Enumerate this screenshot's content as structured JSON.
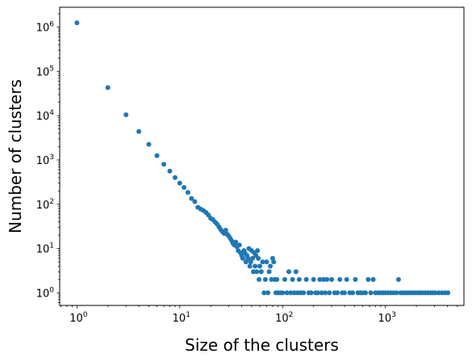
{
  "chart_data": {
    "type": "scatter",
    "xscale": "log",
    "yscale": "log",
    "xlim": [
      0.68,
      5800
    ],
    "ylim": [
      0.52,
      2800000
    ],
    "grid": false,
    "marker_color": "#1f77b4",
    "xlabel": "Size of the clusters",
    "ylabel": "Number of clusters",
    "xticks": [
      {
        "base": "10",
        "exp": "0",
        "value": 1
      },
      {
        "base": "10",
        "exp": "1",
        "value": 10
      },
      {
        "base": "10",
        "exp": "2",
        "value": 100
      },
      {
        "base": "10",
        "exp": "3",
        "value": 1000
      }
    ],
    "yticks": [
      {
        "base": "10",
        "exp": "0",
        "value": 1
      },
      {
        "base": "10",
        "exp": "1",
        "value": 10
      },
      {
        "base": "10",
        "exp": "2",
        "value": 100
      },
      {
        "base": "10",
        "exp": "3",
        "value": 1000
      },
      {
        "base": "10",
        "exp": "4",
        "value": 10000
      },
      {
        "base": "10",
        "exp": "5",
        "value": 100000
      },
      {
        "base": "10",
        "exp": "6",
        "value": 1000000
      }
    ],
    "points": [
      [
        1,
        1250000
      ],
      [
        2,
        43000
      ],
      [
        3,
        10500
      ],
      [
        4,
        4400
      ],
      [
        5,
        2250
      ],
      [
        6,
        1250
      ],
      [
        7,
        800
      ],
      [
        8,
        560
      ],
      [
        9,
        400
      ],
      [
        10,
        300
      ],
      [
        11,
        240
      ],
      [
        12,
        185
      ],
      [
        13,
        135
      ],
      [
        14,
        115
      ],
      [
        15,
        85
      ],
      [
        16,
        78
      ],
      [
        17,
        72
      ],
      [
        18,
        65
      ],
      [
        19,
        57
      ],
      [
        20,
        48
      ],
      [
        21,
        45
      ],
      [
        22,
        40
      ],
      [
        23,
        36
      ],
      [
        24,
        31
      ],
      [
        25,
        27
      ],
      [
        26,
        24
      ],
      [
        27,
        22
      ],
      [
        28,
        26
      ],
      [
        29,
        21
      ],
      [
        30,
        19
      ],
      [
        31,
        17
      ],
      [
        32,
        15
      ],
      [
        33,
        13
      ],
      [
        34,
        12
      ],
      [
        35,
        14
      ],
      [
        36,
        11
      ],
      [
        37,
        9
      ],
      [
        38,
        12
      ],
      [
        39,
        8
      ],
      [
        40,
        7
      ],
      [
        41,
        6
      ],
      [
        42,
        9
      ],
      [
        43,
        8
      ],
      [
        44,
        5
      ],
      [
        45,
        7
      ],
      [
        46,
        6
      ],
      [
        47,
        10
      ],
      [
        48,
        4
      ],
      [
        49,
        5
      ],
      [
        50,
        9
      ],
      [
        51,
        6
      ],
      [
        52,
        3
      ],
      [
        53,
        8
      ],
      [
        54,
        4
      ],
      [
        55,
        7
      ],
      [
        56,
        3
      ],
      [
        57,
        9
      ],
      [
        58,
        6
      ],
      [
        59,
        2
      ],
      [
        60,
        4
      ],
      [
        62,
        3
      ],
      [
        64,
        5
      ],
      [
        66,
        1
      ],
      [
        68,
        2
      ],
      [
        70,
        5
      ],
      [
        72,
        1
      ],
      [
        74,
        3
      ],
      [
        76,
        4
      ],
      [
        78,
        2
      ],
      [
        80,
        6
      ],
      [
        82,
        5
      ],
      [
        84,
        2
      ],
      [
        86,
        1
      ],
      [
        88,
        2
      ],
      [
        90,
        1
      ],
      [
        95,
        1
      ],
      [
        100,
        1
      ],
      [
        105,
        2
      ],
      [
        110,
        1
      ],
      [
        115,
        3
      ],
      [
        120,
        1
      ],
      [
        125,
        2
      ],
      [
        130,
        1
      ],
      [
        135,
        3
      ],
      [
        140,
        1
      ],
      [
        145,
        2
      ],
      [
        150,
        1
      ],
      [
        160,
        1
      ],
      [
        170,
        2
      ],
      [
        180,
        1
      ],
      [
        190,
        1
      ],
      [
        200,
        2
      ],
      [
        210,
        1
      ],
      [
        220,
        1
      ],
      [
        230,
        2
      ],
      [
        240,
        1
      ],
      [
        250,
        2
      ],
      [
        260,
        1
      ],
      [
        270,
        2
      ],
      [
        285,
        1
      ],
      [
        300,
        2
      ],
      [
        320,
        1
      ],
      [
        340,
        1
      ],
      [
        360,
        2
      ],
      [
        380,
        1
      ],
      [
        400,
        1
      ],
      [
        420,
        2
      ],
      [
        450,
        1
      ],
      [
        480,
        1
      ],
      [
        510,
        2
      ],
      [
        540,
        1
      ],
      [
        570,
        1
      ],
      [
        600,
        1
      ],
      [
        640,
        1
      ],
      [
        680,
        2
      ],
      [
        720,
        1
      ],
      [
        760,
        2
      ],
      [
        800,
        1
      ],
      [
        850,
        1
      ],
      [
        900,
        1
      ],
      [
        950,
        1
      ],
      [
        1000,
        1
      ],
      [
        1060,
        1
      ],
      [
        1130,
        1
      ],
      [
        1200,
        1
      ],
      [
        1280,
        1
      ],
      [
        1340,
        2
      ],
      [
        1400,
        1
      ],
      [
        1480,
        1
      ],
      [
        1560,
        1
      ],
      [
        1650,
        1
      ],
      [
        1740,
        1
      ],
      [
        1840,
        1
      ],
      [
        1950,
        1
      ],
      [
        2060,
        1
      ],
      [
        2180,
        1
      ],
      [
        2300,
        1
      ],
      [
        2450,
        1
      ],
      [
        2600,
        1
      ],
      [
        2750,
        1
      ],
      [
        2900,
        1
      ],
      [
        3050,
        1
      ],
      [
        3300,
        1
      ],
      [
        3550,
        1
      ],
      [
        3800,
        1
      ],
      [
        4050,
        1
      ]
    ]
  }
}
